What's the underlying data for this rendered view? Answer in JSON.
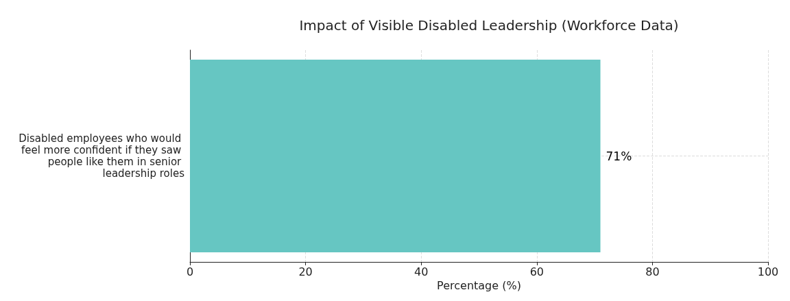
{
  "chart_data": {
    "type": "bar",
    "orientation": "horizontal",
    "title": "Impact of Visible Disabled Leadership (Workforce Data)",
    "xlabel": "Percentage (%)",
    "categories": [
      "Disabled employees who would feel more confident if they saw people like them in senior leadership roles"
    ],
    "values": [
      71
    ],
    "value_labels": [
      "71%"
    ],
    "color": "#66c6c2",
    "xlim": [
      0,
      100
    ],
    "xticks": [
      0,
      20,
      40,
      60,
      80,
      100
    ],
    "grid": true
  }
}
